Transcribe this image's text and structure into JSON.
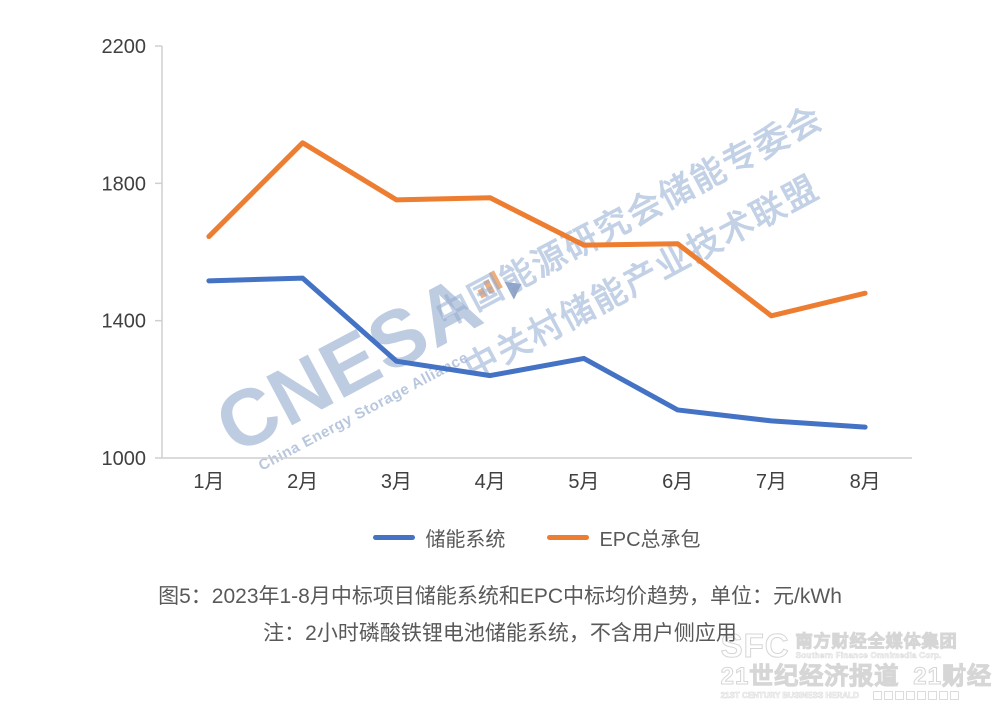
{
  "chart_data": {
    "type": "line",
    "title": "图5：2023年1-8月中标项目储能系统和EPC中标均价趋势，单位：元/kWh",
    "note": "注：2小时磷酸铁锂电池储能系统，不含用户侧应用",
    "categories": [
      "1月",
      "2月",
      "3月",
      "4月",
      "5月",
      "6月",
      "7月",
      "8月"
    ],
    "series": [
      {
        "name": "储能系统",
        "color": "#4472C4",
        "values": [
          1516,
          1524,
          1282,
          1240,
          1290,
          1140,
          1108,
          1090
        ]
      },
      {
        "name": "EPC总承包",
        "color": "#ED7D31",
        "values": [
          1645,
          1918,
          1752,
          1758,
          1620,
          1624,
          1414,
          1480
        ]
      }
    ],
    "ylim": [
      1000,
      2200
    ],
    "yticks": [
      1000,
      1400,
      1800,
      2200
    ],
    "grid": false,
    "legend_position": "bottom",
    "unit": "元/kWh"
  },
  "caption": {
    "line1": "图5：2023年1-8月中标项目储能系统和EPC中标均价趋势，单位：元/kWh",
    "line2": "注：2小时磷酸铁锂电池储能系统，不含用户侧应用"
  },
  "watermark_cnesa": {
    "big": "CNESA",
    "sub": "China Energy Storage Alliance",
    "cn_line1": "中国能源研究会储能专委会",
    "cn_line2": "中关村储能产业技术联盟",
    "color": "#88A2C8"
  },
  "watermark_sfc": {
    "mark": "SFC",
    "corp_cn": "南方财经全媒体集团",
    "corp_en": "Southern Finance Omnimedia Corp.",
    "herald_cn": "21世纪经济报道",
    "brand_cn": "21财经",
    "herald_en": "21ST CENTURY BUSINESS HERALD"
  }
}
